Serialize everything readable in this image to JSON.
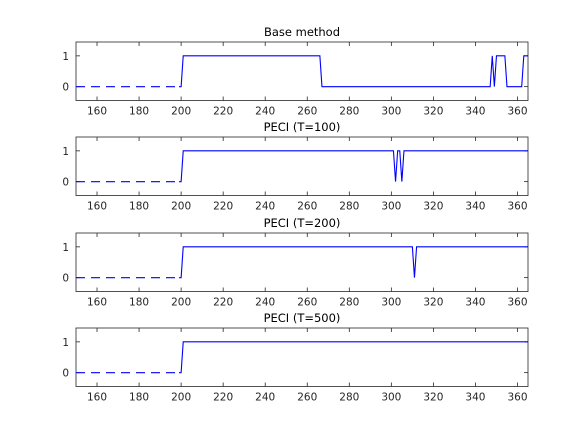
{
  "chart_data": [
    {
      "type": "line",
      "title": "Base method",
      "xlim": [
        150,
        365
      ],
      "ylim": [
        -0.45,
        1.45
      ],
      "xticks": [
        160,
        180,
        200,
        220,
        240,
        260,
        280,
        300,
        320,
        340,
        360
      ],
      "yticks": [
        0,
        1
      ],
      "series": [
        {
          "style": "dashed",
          "color": "#0000ff",
          "x": [
            150,
            199
          ],
          "y": [
            0,
            0
          ]
        },
        {
          "style": "solid",
          "color": "#0000ff",
          "x": [
            199,
            200,
            201,
            266,
            267,
            347,
            348,
            349,
            350,
            354,
            355,
            356,
            362,
            363,
            365
          ],
          "y": [
            0,
            0,
            1,
            1,
            0,
            0,
            1,
            0,
            1,
            1,
            0,
            0,
            0,
            1,
            1
          ]
        }
      ]
    },
    {
      "type": "line",
      "title": "PECI (T=100)",
      "xlim": [
        150,
        365
      ],
      "ylim": [
        -0.45,
        1.45
      ],
      "xticks": [
        160,
        180,
        200,
        220,
        240,
        260,
        280,
        300,
        320,
        340,
        360
      ],
      "yticks": [
        0,
        1
      ],
      "series": [
        {
          "style": "dashed",
          "color": "#0000ff",
          "x": [
            150,
            199
          ],
          "y": [
            0,
            0
          ]
        },
        {
          "style": "solid",
          "color": "#0000ff",
          "x": [
            199,
            200,
            201,
            301,
            302,
            303,
            304,
            305,
            306,
            365
          ],
          "y": [
            0,
            0,
            1,
            1,
            0,
            1,
            1,
            0,
            1,
            1
          ]
        }
      ]
    },
    {
      "type": "line",
      "title": "PECI (T=200)",
      "xlim": [
        150,
        365
      ],
      "ylim": [
        -0.45,
        1.45
      ],
      "xticks": [
        160,
        180,
        200,
        220,
        240,
        260,
        280,
        300,
        320,
        340,
        360
      ],
      "yticks": [
        0,
        1
      ],
      "series": [
        {
          "style": "dashed",
          "color": "#0000ff",
          "x": [
            150,
            199
          ],
          "y": [
            0,
            0
          ]
        },
        {
          "style": "solid",
          "color": "#0000ff",
          "x": [
            199,
            200,
            201,
            310,
            311,
            312,
            365
          ],
          "y": [
            0,
            0,
            1,
            1,
            0,
            1,
            1
          ]
        }
      ]
    },
    {
      "type": "line",
      "title": "PECI (T=500)",
      "xlim": [
        150,
        365
      ],
      "ylim": [
        -0.45,
        1.45
      ],
      "xticks": [
        160,
        180,
        200,
        220,
        240,
        260,
        280,
        300,
        320,
        340,
        360
      ],
      "yticks": [
        0,
        1
      ],
      "series": [
        {
          "style": "dashed",
          "color": "#0000ff",
          "x": [
            150,
            199
          ],
          "y": [
            0,
            0
          ]
        },
        {
          "style": "solid",
          "color": "#0000ff",
          "x": [
            199,
            200,
            201,
            365
          ],
          "y": [
            0,
            0,
            1,
            1
          ]
        }
      ]
    }
  ]
}
